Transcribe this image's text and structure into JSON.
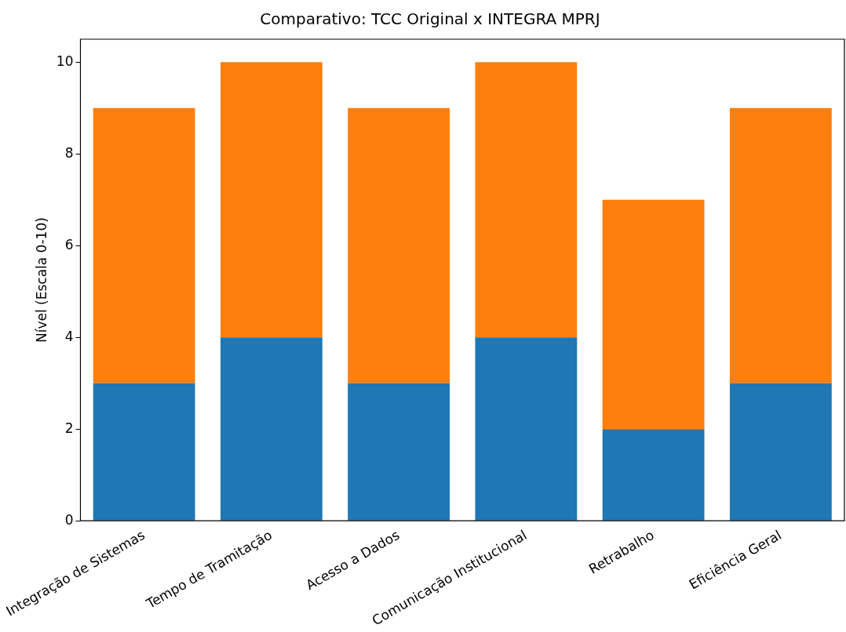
{
  "chart_data": {
    "type": "bar",
    "title": "Comparativo: TCC Original x INTEGRA MPRJ",
    "ylabel": "Nível (Escala 0-10)",
    "categories": [
      "Integração de Sistemas",
      "Tempo de Tramitação",
      "Acesso a Dados",
      "Comunicação Institucional",
      "Retrabalho",
      "Eficiência Geral"
    ],
    "stacked": true,
    "series": [
      {
        "color": "#1f77b4",
        "values": [
          3,
          4,
          3,
          4,
          2,
          3
        ]
      },
      {
        "color": "#ff7f0e",
        "values": [
          6,
          6,
          6,
          6,
          5,
          6
        ]
      }
    ],
    "ylim": [
      0,
      10.5
    ],
    "yticks": [
      0,
      2,
      4,
      6,
      8,
      10
    ],
    "grid": false,
    "legend": false
  }
}
